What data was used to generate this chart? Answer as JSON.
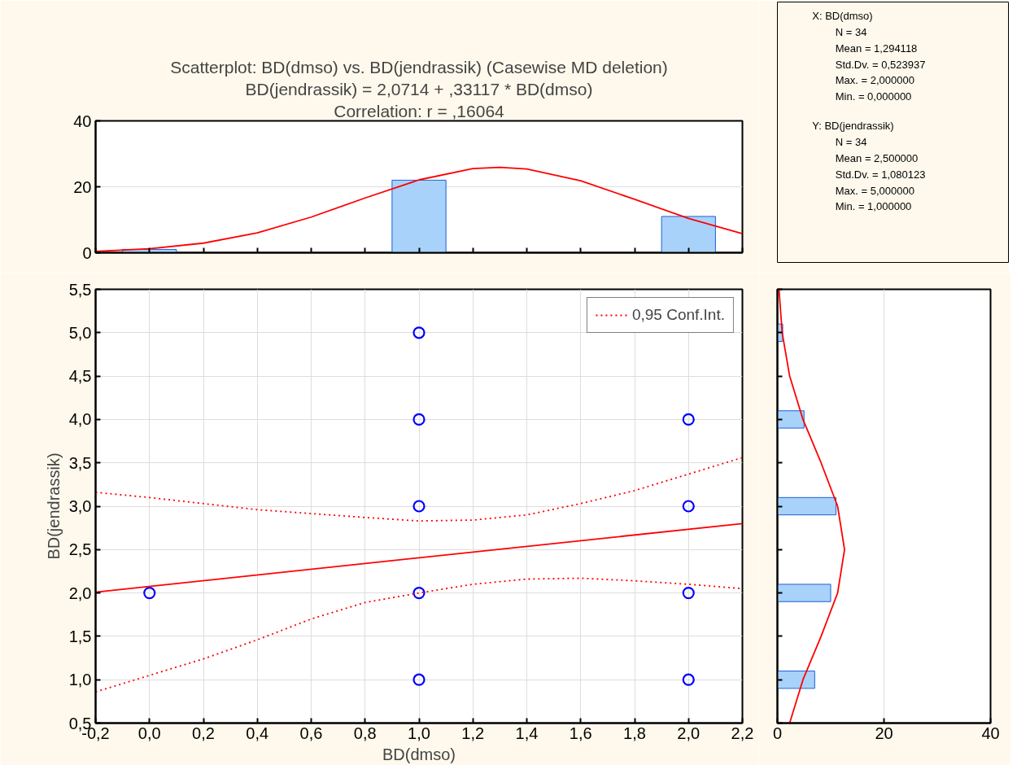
{
  "chart_data": [
    {
      "type": "histogram",
      "title": "Scatterplot: BD(dmso) vs. BD(jendrassik) (Casewise MD deletion)",
      "subtitle": "BD(jendrassik) = 2,0714 + ,33117 * BD(dmso)",
      "annotations": [
        "Correlation: r = ,16064"
      ],
      "xlim": [
        -0.2,
        2.2
      ],
      "xticks": [
        {
          "value": -0.2,
          "label": null
        },
        {
          "value": 0,
          "label": null
        },
        {
          "value": 0.2,
          "label": null
        },
        {
          "value": 0.4,
          "label": null
        },
        {
          "value": 0.6,
          "label": null
        },
        {
          "value": 0.8,
          "label": null
        },
        {
          "value": 1,
          "label": null
        },
        {
          "value": 1.2,
          "label": null
        },
        {
          "value": 1.4,
          "label": null
        },
        {
          "value": 1.6,
          "label": null
        },
        {
          "value": 1.8,
          "label": null
        },
        {
          "value": 2,
          "label": null
        },
        {
          "value": 2.2,
          "label": null
        }
      ],
      "ylim": [
        0,
        40
      ],
      "yticks": [
        0,
        20,
        40
      ],
      "tick_labels": "y",
      "grid": "y",
      "series": [
        {
          "type": "histogram",
          "bins": [
            -0.1,
            0.1,
            0.3,
            0.5,
            0.7,
            0.9,
            1.1,
            1.3,
            1.5,
            1.7,
            1.9,
            2.1
          ],
          "values": [
            1,
            0,
            0,
            0,
            0,
            22,
            0,
            0,
            0,
            0,
            11
          ],
          "color": "#a8d2fa"
        },
        {
          "type": "line",
          "x": [
            -0.2,
            0,
            0.2,
            0.4,
            0.6,
            0.8,
            1,
            1.2,
            1.3,
            1.4,
            1.6,
            1.8,
            2,
            2.2
          ],
          "values": [
            0.4,
            1.2,
            2.9,
            6,
            10.8,
            16.6,
            22.1,
            25.5,
            25.9,
            25.4,
            21.8,
            16.2,
            10.4,
            5.8
          ],
          "color": "#ff0000"
        }
      ]
    },
    {
      "type": "scatter",
      "xlabel": "BD(dmso)",
      "ylabel": "BD(jendrassik)",
      "xlim": [
        -0.2,
        2.2
      ],
      "xticks": [
        {
          "value": -0.2,
          "label": "-0,2"
        },
        {
          "value": 0,
          "label": "0,0"
        },
        {
          "value": 0.2,
          "label": "0,2"
        },
        {
          "value": 0.4,
          "label": "0,4"
        },
        {
          "value": 0.6,
          "label": "0,6"
        },
        {
          "value": 0.8,
          "label": "0,8"
        },
        {
          "value": 1,
          "label": "1,0"
        },
        {
          "value": 1.2,
          "label": "1,2"
        },
        {
          "value": 1.4,
          "label": "1,4"
        },
        {
          "value": 1.6,
          "label": "1,6"
        },
        {
          "value": 1.8,
          "label": "1,8"
        },
        {
          "value": 2,
          "label": "2,0"
        },
        {
          "value": 2.2,
          "label": "2,2"
        }
      ],
      "ylim": [
        0.5,
        5.5
      ],
      "yticks": [
        {
          "value": 0.5,
          "label": "0,5"
        },
        {
          "value": 1,
          "label": "1,0"
        },
        {
          "value": 1.5,
          "label": "1,5"
        },
        {
          "value": 2,
          "label": "2,0"
        },
        {
          "value": 2.5,
          "label": "2,5"
        },
        {
          "value": 3,
          "label": "3,0"
        },
        {
          "value": 3.5,
          "label": "3,5"
        },
        {
          "value": 4,
          "label": "4,0"
        },
        {
          "value": 4.5,
          "label": "4,5"
        },
        {
          "value": 5,
          "label": "5,0"
        },
        {
          "value": 5.5,
          "label": "5,5"
        }
      ],
      "grid": true,
      "legend": "top right",
      "series": [
        {
          "type": "scatter",
          "marker": "circle",
          "x": [
            0,
            1,
            1,
            1,
            1,
            1,
            2,
            2,
            2,
            2
          ],
          "values": [
            2,
            1,
            2,
            3,
            4,
            5,
            1,
            2,
            3,
            4
          ],
          "color": "#0000ff"
        },
        {
          "type": "line",
          "x": [
            -0.2,
            2.2
          ],
          "values": [
            2.01,
            2.8
          ],
          "color": "#ff0000",
          "line_style": "solid"
        },
        {
          "type": "line",
          "name": "0,95 Conf.Int.",
          "x": [
            -0.2,
            0,
            0.4,
            0.8,
            1,
            1.2,
            1.4,
            1.6,
            1.8,
            2,
            2.2
          ],
          "values": [
            3.16,
            3.1,
            2.96,
            2.87,
            2.83,
            2.84,
            2.9,
            3.03,
            3.18,
            3.37,
            3.56
          ],
          "color": "#ff0000",
          "line_style": "dotted"
        },
        {
          "type": "line",
          "x": [
            -0.2,
            0,
            0.2,
            0.4,
            0.6,
            0.8,
            1,
            1.2,
            1.4,
            1.6,
            1.8,
            2,
            2.2
          ],
          "values": [
            0.86,
            1.05,
            1.24,
            1.46,
            1.7,
            1.89,
            2,
            2.1,
            2.16,
            2.17,
            2.14,
            2.1,
            2.05
          ],
          "color": "#ff0000",
          "line_style": "dotted"
        }
      ]
    },
    {
      "type": "histogram",
      "orientation": "horizontal",
      "xlim": [
        0,
        40
      ],
      "xticks": [
        0,
        20,
        40
      ],
      "ylim": [
        0.5,
        5.5
      ],
      "yticks": [
        {
          "value": 0.5,
          "label": null
        },
        {
          "value": 1,
          "label": null
        },
        {
          "value": 1.5,
          "label": null
        },
        {
          "value": 2,
          "label": null
        },
        {
          "value": 2.5,
          "label": null
        },
        {
          "value": 3,
          "label": null
        },
        {
          "value": 3.5,
          "label": null
        },
        {
          "value": 4,
          "label": null
        },
        {
          "value": 4.5,
          "label": null
        },
        {
          "value": 5,
          "label": null
        },
        {
          "value": 5.5,
          "label": null
        }
      ],
      "tick_labels": "x",
      "grid": "x",
      "series": [
        {
          "type": "histogram",
          "bins": [
            0.9,
            1.1,
            1.3,
            1.5,
            1.7,
            1.9,
            2.1,
            2.3,
            2.5,
            2.7,
            2.9,
            3.1,
            3.3,
            3.5,
            3.7,
            3.9,
            4.1,
            4.3,
            4.5,
            4.7,
            4.9,
            5.1
          ],
          "values": [
            7,
            0,
            0,
            0,
            0,
            10,
            0,
            0,
            0,
            0,
            11,
            0,
            0,
            0,
            0,
            5,
            0,
            0,
            0,
            0,
            1
          ],
          "color": "#a8d2fa"
        },
        {
          "type": "line",
          "x": [
            0.5,
            1,
            1.5,
            2,
            2.5,
            3,
            3.5,
            4,
            4.5,
            5,
            5.5
          ],
          "values": [
            2.3,
            4.8,
            8.2,
            11.3,
            12.6,
            11.3,
            8.2,
            4.8,
            2.3,
            0.9,
            0.3
          ],
          "color": "#ff0000"
        }
      ]
    },
    {
      "type": "other",
      "annotations": [
        "X:  BD(dmso)",
        "N = 34",
        "Mean = 1,294118",
        "Std.Dv. = 0,523937",
        "Max. = 2,000000",
        "Min. = 0,000000",
        "Y:  BD(jendrassik)",
        "N = 34",
        "Mean = 2,500000",
        "Std.Dv. = 1,080123",
        "Max. = 5,000000",
        "Min. = 1,000000"
      ]
    }
  ]
}
